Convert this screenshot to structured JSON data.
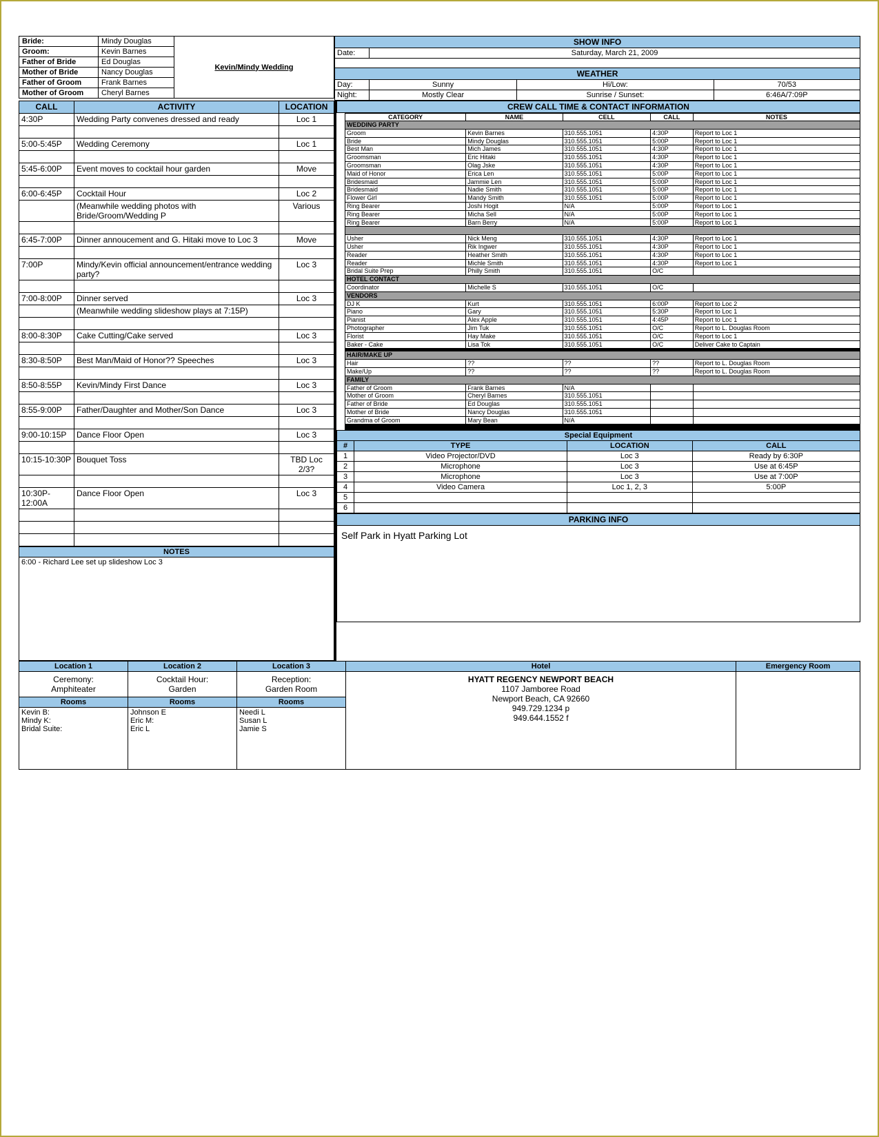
{
  "colors": {
    "header_bg": "#9cc8e8",
    "gray_bg": "#a0a0a0",
    "border": "#000000"
  },
  "title": "Kevin/Mindy Wedding",
  "bridal": [
    {
      "label": "Bride:",
      "value": "Mindy Douglas"
    },
    {
      "label": "Groom:",
      "value": "Kevin Barnes"
    },
    {
      "label": "Father of Bride",
      "value": "Ed Douglas"
    },
    {
      "label": "Mother of Bride",
      "value": "Nancy Douglas"
    },
    {
      "label": "Father of Groom",
      "value": "Frank Barnes"
    },
    {
      "label": "Mother of Groom",
      "value": "Cheryl Barnes"
    }
  ],
  "show_info": {
    "header": "SHOW INFO",
    "date_label": "Date:",
    "date": "Saturday, March 21, 2009"
  },
  "weather": {
    "header": "WEATHER",
    "day_label": "Day:",
    "day": "Sunny",
    "hilow_label": "Hi/Low:",
    "hilow": "70/53",
    "night_label": "Night:",
    "night": "Mostly Clear",
    "sun_label": "Sunrise / Sunset:",
    "sun": "6:46A/7:09P"
  },
  "crew_header": "CREW CALL TIME & CONTACT INFORMATION",
  "crew_cols": [
    "CATEGORY",
    "NAME",
    "CELL",
    "CALL",
    "NOTES"
  ],
  "crew_sections": [
    {
      "title": "WEDDING PARTY",
      "rows": [
        [
          "Groom",
          "Kevin Barnes",
          "310.555.1051",
          "4:30P",
          "Report to Loc 1"
        ],
        [
          "Bride",
          "Mindy Douglas",
          "310.555.1051",
          "5:00P",
          "Report to Loc 1"
        ],
        [
          "Best Man",
          "Mich James",
          "310.555.1051",
          "4:30P",
          "Report to Loc 1"
        ],
        [
          "Groomsman",
          "Eric Hitaki",
          "310.555.1051",
          "4:30P",
          "Report to Loc 1"
        ],
        [
          "Groomsman",
          "Olag Jske",
          "310.555.1051",
          "4:30P",
          "Report to Loc 1"
        ],
        [
          "Maid of Honor",
          "Erica Len",
          "310.555.1051",
          "5:00P",
          "Report to Loc 1"
        ],
        [
          "Bridesmaid",
          "Jammie Len",
          "310.555.1051",
          "5:00P",
          "Report to Loc 1"
        ],
        [
          "Bridesmaid",
          "Nadie Smith",
          "310.555.1051",
          "5:00P",
          "Report to Loc 1"
        ],
        [
          "Flower Girl",
          "Mandy Smith",
          "310.555.1051",
          "5:00P",
          "Report to Loc 1"
        ],
        [
          "Ring Bearer",
          "Joshi Hogit",
          "N/A",
          "5:00P",
          "Report to Loc 1"
        ],
        [
          "Ring Bearer",
          "Micha Sell",
          "N/A",
          "5:00P",
          "Report to Loc 1"
        ],
        [
          "Ring Bearer",
          "Barn Berry",
          "N/A",
          "5:00P",
          "Report to Loc 1"
        ]
      ]
    },
    {
      "title": "",
      "rows": [
        [
          "Usher",
          "Nick Meng",
          "310.555.1051",
          "4:30P",
          "Report to Loc 1"
        ],
        [
          "Usher",
          "Rik Ingwer",
          "310.555.1051",
          "4:30P",
          "Report to Loc 1"
        ],
        [
          "Reader",
          "Heather Smith",
          "310.555.1051",
          "4:30P",
          "Report to Loc 1"
        ],
        [
          "Reader",
          "Michle Smith",
          "310.555.1051",
          "4:30P",
          "Report to Loc 1"
        ],
        [
          "Bridal Suite Prep",
          "Philly Smith",
          "310.555.1051",
          "O/C",
          ""
        ]
      ]
    },
    {
      "title": "HOTEL CONTACT",
      "rows": [
        [
          "Coordinator",
          "Michelle S",
          "310.555.1051",
          "O/C",
          ""
        ]
      ]
    },
    {
      "title": "VENDORS",
      "rows": [
        [
          "DJ K",
          "Kurt",
          "310.555.1051",
          "6:00P",
          "Report to Loc 2"
        ],
        [
          "Piano",
          "Gary",
          "310.555.1051",
          "5:30P",
          "Report to Loc 1"
        ],
        [
          "Pianist",
          "Alex Apple",
          "310.555.1051",
          "4:45P",
          "Report to Loc 1"
        ],
        [
          "Photographer",
          "Jim Tuk",
          "310.555.1051",
          "O/C",
          "Report to L. Douglas Room"
        ],
        [
          "Florist",
          "Hay Make",
          "310.555.1051",
          "O/C",
          "Report to Loc 1"
        ],
        [
          "Baker - Cake",
          "Lisa Tok",
          "310.555.1051",
          "O/C",
          "Deliver Cake to Captain"
        ],
        [
          "",
          "",
          "",
          "",
          ""
        ],
        [
          "",
          "",
          "",
          "",
          ""
        ],
        [
          "",
          "",
          "",
          "",
          ""
        ],
        [
          "",
          "",
          "",
          "",
          ""
        ]
      ]
    },
    {
      "title": "HAIR/MAKE UP",
      "rows": [
        [
          "Hair",
          "??",
          "??",
          "??",
          "Report to L. Douglas Room"
        ],
        [
          "Make/Up",
          "??",
          "??",
          "??",
          "Report to L. Douglas Room"
        ]
      ]
    },
    {
      "title": "FAMILY",
      "rows": [
        [
          "Father of Groom",
          "Frank Barnes",
          "N/A",
          "",
          ""
        ],
        [
          "Mother of Groom",
          "Cheryl Barnes",
          "310.555.1051",
          "",
          ""
        ],
        [
          "Father of Bride",
          "Ed Douglas",
          "310.555.1051",
          "",
          ""
        ],
        [
          "Mother of Bride",
          "Nancy Douglas",
          "310.555.1051",
          "",
          ""
        ],
        [
          "Grandma of Groom",
          "Mary Bean",
          "N/A",
          "",
          ""
        ],
        [
          "",
          "",
          "",
          "",
          ""
        ],
        [
          "",
          "",
          "",
          "",
          ""
        ],
        [
          "",
          "",
          "",
          "",
          ""
        ],
        [
          "",
          "",
          "",
          "",
          ""
        ],
        [
          "",
          "",
          "",
          "",
          ""
        ],
        [
          "",
          "",
          "",
          "",
          ""
        ],
        [
          "",
          "",
          "",
          "",
          ""
        ],
        [
          "",
          "",
          "",
          "",
          ""
        ]
      ]
    }
  ],
  "schedule_hdr": {
    "call": "CALL",
    "activity": "ACTIVITY",
    "location": "LOCATION"
  },
  "schedule": [
    [
      "4:30P",
      "Wedding Party convenes dressed and ready",
      "Loc 1"
    ],
    [
      "",
      "",
      ""
    ],
    [
      "5:00-5:45P",
      "Wedding Ceremony",
      "Loc 1"
    ],
    [
      "",
      "",
      ""
    ],
    [
      "5:45-6:00P",
      "Event moves to cocktail hour garden",
      "Move"
    ],
    [
      "",
      "",
      ""
    ],
    [
      "6:00-6:45P",
      "Cocktail Hour",
      "Loc 2"
    ],
    [
      "",
      "(Meanwhile wedding photos with Bride/Groom/Wedding P",
      "Various"
    ],
    [
      "",
      "",
      ""
    ],
    [
      "6:45-7:00P",
      "Dinner annoucement and G. Hitaki move to Loc 3",
      "Move"
    ],
    [
      "",
      "",
      ""
    ],
    [
      "7:00P",
      "Mindy/Kevin official announcement/entrance wedding party?",
      "Loc 3"
    ],
    [
      "",
      "",
      ""
    ],
    [
      "7:00-8:00P",
      "Dinner served",
      "Loc 3"
    ],
    [
      "",
      "(Meanwhile wedding slideshow plays at 7:15P)",
      ""
    ],
    [
      "",
      "",
      ""
    ],
    [
      "8:00-8:30P",
      "Cake Cutting/Cake served",
      "Loc 3"
    ],
    [
      "",
      "",
      ""
    ],
    [
      "8:30-8:50P",
      "Best Man/Maid of Honor?? Speeches",
      "Loc 3"
    ],
    [
      "",
      "",
      ""
    ],
    [
      "8:50-8:55P",
      "Kevin/Mindy First Dance",
      "Loc 3"
    ],
    [
      "",
      "",
      ""
    ],
    [
      "8:55-9:00P",
      "Father/Daughter and Mother/Son Dance",
      "Loc 3"
    ],
    [
      "",
      "",
      ""
    ],
    [
      "9:00-10:15P",
      "Dance Floor Open",
      "Loc 3"
    ],
    [
      "",
      "",
      ""
    ],
    [
      "10:15-10:30P",
      "Bouquet Toss",
      "TBD Loc 2/3?"
    ],
    [
      "",
      "",
      ""
    ],
    [
      "10:30P-12:00A",
      "Dance Floor Open",
      "Loc 3"
    ],
    [
      "",
      "",
      ""
    ],
    [
      "",
      "",
      ""
    ],
    [
      "",
      "",
      ""
    ]
  ],
  "notes_hdr": "NOTES",
  "notes": "6:00 - Richard Lee set up slideshow Loc 3",
  "equip_hdr": "Special Equipment",
  "equip_cols": [
    "#",
    "TYPE",
    "LOCATION",
    "CALL"
  ],
  "equip": [
    [
      "1",
      "Video Projector/DVD",
      "Loc 3",
      "Ready by 6:30P"
    ],
    [
      "2",
      "Microphone",
      "Loc 3",
      "Use at 6:45P"
    ],
    [
      "3",
      "Microphone",
      "Loc 3",
      "Use at 7:00P"
    ],
    [
      "4",
      "Video Camera",
      "Loc 1, 2, 3",
      "5:00P"
    ],
    [
      "5",
      "",
      "",
      ""
    ],
    [
      "6",
      "",
      "",
      ""
    ]
  ],
  "parking_hdr": "PARKING INFO",
  "parking": "Self Park in Hyatt Parking Lot",
  "locations": {
    "hdrs": [
      "Location 1",
      "Location 2",
      "Location 3",
      "Hotel",
      "Emergency Room"
    ],
    "l1": {
      "a": "Ceremony:",
      "b": "Amphiteater"
    },
    "l2": {
      "a": "Cocktail Hour:",
      "b": "Garden"
    },
    "l3": {
      "a": "Reception:",
      "b": "Garden Room"
    },
    "hotel": [
      "HYATT REGENCY NEWPORT BEACH",
      "1107 Jamboree Road",
      "Newport Beach, CA 92660",
      "949.729.1234 p",
      "949.644.1552 f"
    ]
  },
  "rooms_hdr": "Rooms",
  "rooms": [
    [
      "Kevin B:",
      "Johnson E",
      "Needi L"
    ],
    [
      "Mindy K:",
      "Eric M:",
      "Susan L"
    ],
    [
      "Bridal Suite:",
      "Eric L",
      "Jamie S"
    ],
    [
      "",
      "",
      ""
    ],
    [
      "",
      "",
      ""
    ]
  ]
}
